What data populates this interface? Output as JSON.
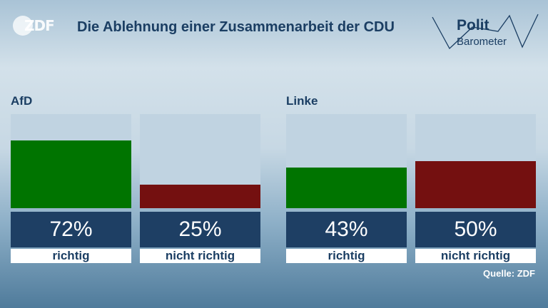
{
  "logo": {
    "text": "ZDF"
  },
  "title": "Die Ablehnung einer Zusammenarbeit der CDU",
  "brand": {
    "line1": "Polit",
    "line2": "Barometer"
  },
  "source": "Quelle: ZDF",
  "colors": {
    "richtig": "#007400",
    "nicht_richtig": "#741010",
    "track": "#c0d3e1",
    "box": "#1e3f64"
  },
  "chart_data": {
    "type": "bar",
    "title": "Die Ablehnung einer Zusammenarbeit der CDU",
    "ylim": [
      0,
      100
    ],
    "unit": "%",
    "groups": [
      {
        "name": "AfD",
        "bars": [
          {
            "label": "richtig",
            "value": 72,
            "display": "72%",
            "color": "#007400"
          },
          {
            "label": "nicht richtig",
            "value": 25,
            "display": "25%",
            "color": "#741010"
          }
        ]
      },
      {
        "name": "Linke",
        "bars": [
          {
            "label": "richtig",
            "value": 43,
            "display": "43%",
            "color": "#007400"
          },
          {
            "label": "nicht richtig",
            "value": 50,
            "display": "50%",
            "color": "#741010"
          }
        ]
      }
    ]
  }
}
